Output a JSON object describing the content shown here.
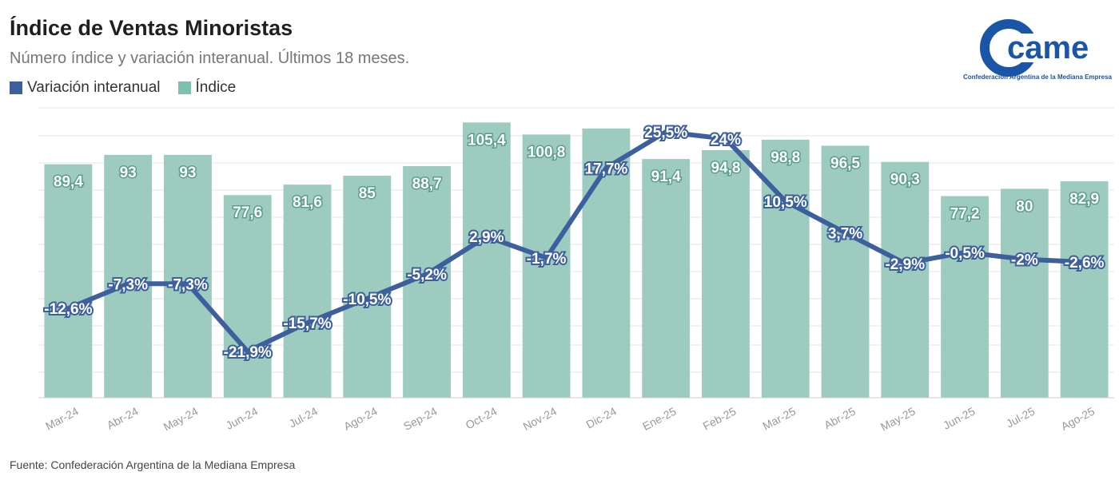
{
  "title": "Índice de Ventas Minoristas",
  "subtitle": "Número índice y variación interanual. Últimos 18 meses.",
  "source": "Fuente: Confederación Argentina de la Mediana Empresa",
  "logo": {
    "text": "came",
    "subtitle": "Confederación Argentina de la Mediana Empresa"
  },
  "colors": {
    "bar": "#9dcbbf",
    "line": "#3d5f9e",
    "logo": "#1a55a8"
  },
  "chart_data": {
    "type": "bar",
    "categories": [
      "Mar-24",
      "Abr-24",
      "May-24",
      "Jun-24",
      "Jul-24",
      "Ago-24",
      "Sep-24",
      "Oct-24",
      "Nov-24",
      "Dic-24",
      "Ene-25",
      "Feb-25",
      "Mar-25",
      "Abr-25",
      "May-25",
      "Jun-25",
      "Jul-25",
      "Ago-25"
    ],
    "series": [
      {
        "name": "Índice",
        "type": "bar",
        "values": [
          89.4,
          93,
          93,
          77.6,
          81.6,
          85,
          88.7,
          105.4,
          100.8,
          null,
          91.4,
          94.8,
          98.8,
          96.5,
          90.3,
          77.2,
          80,
          82.9
        ],
        "labels": [
          "89,4",
          "93",
          "93",
          "77,6",
          "81,6",
          "85",
          "88,7",
          "105,4",
          "100,8",
          "",
          "91,4",
          "94,8",
          "98,8",
          "96,5",
          "90,3",
          "77,2",
          "80",
          "82,9"
        ]
      },
      {
        "name": "Variación interanual",
        "type": "line",
        "values": [
          -12.6,
          -7.3,
          -7.3,
          -21.9,
          -15.7,
          -10.5,
          -5.2,
          2.9,
          -1.7,
          17.7,
          25.5,
          24,
          10.5,
          3.7,
          -2.9,
          -0.5,
          -2,
          -2.6
        ],
        "labels": [
          "-12,6%",
          "-7,3%",
          "-7,3%",
          "-21,9%",
          "-15,7%",
          "-10,5%",
          "-5,2%",
          "2,9%",
          "-1,7%",
          "17,7%",
          "25,5%",
          "24%",
          "10,5%",
          "3,7%",
          "-2,9%",
          "-0,5%",
          "-2%",
          "-2,6%"
        ]
      }
    ],
    "grid": true,
    "legend": "top-left"
  }
}
